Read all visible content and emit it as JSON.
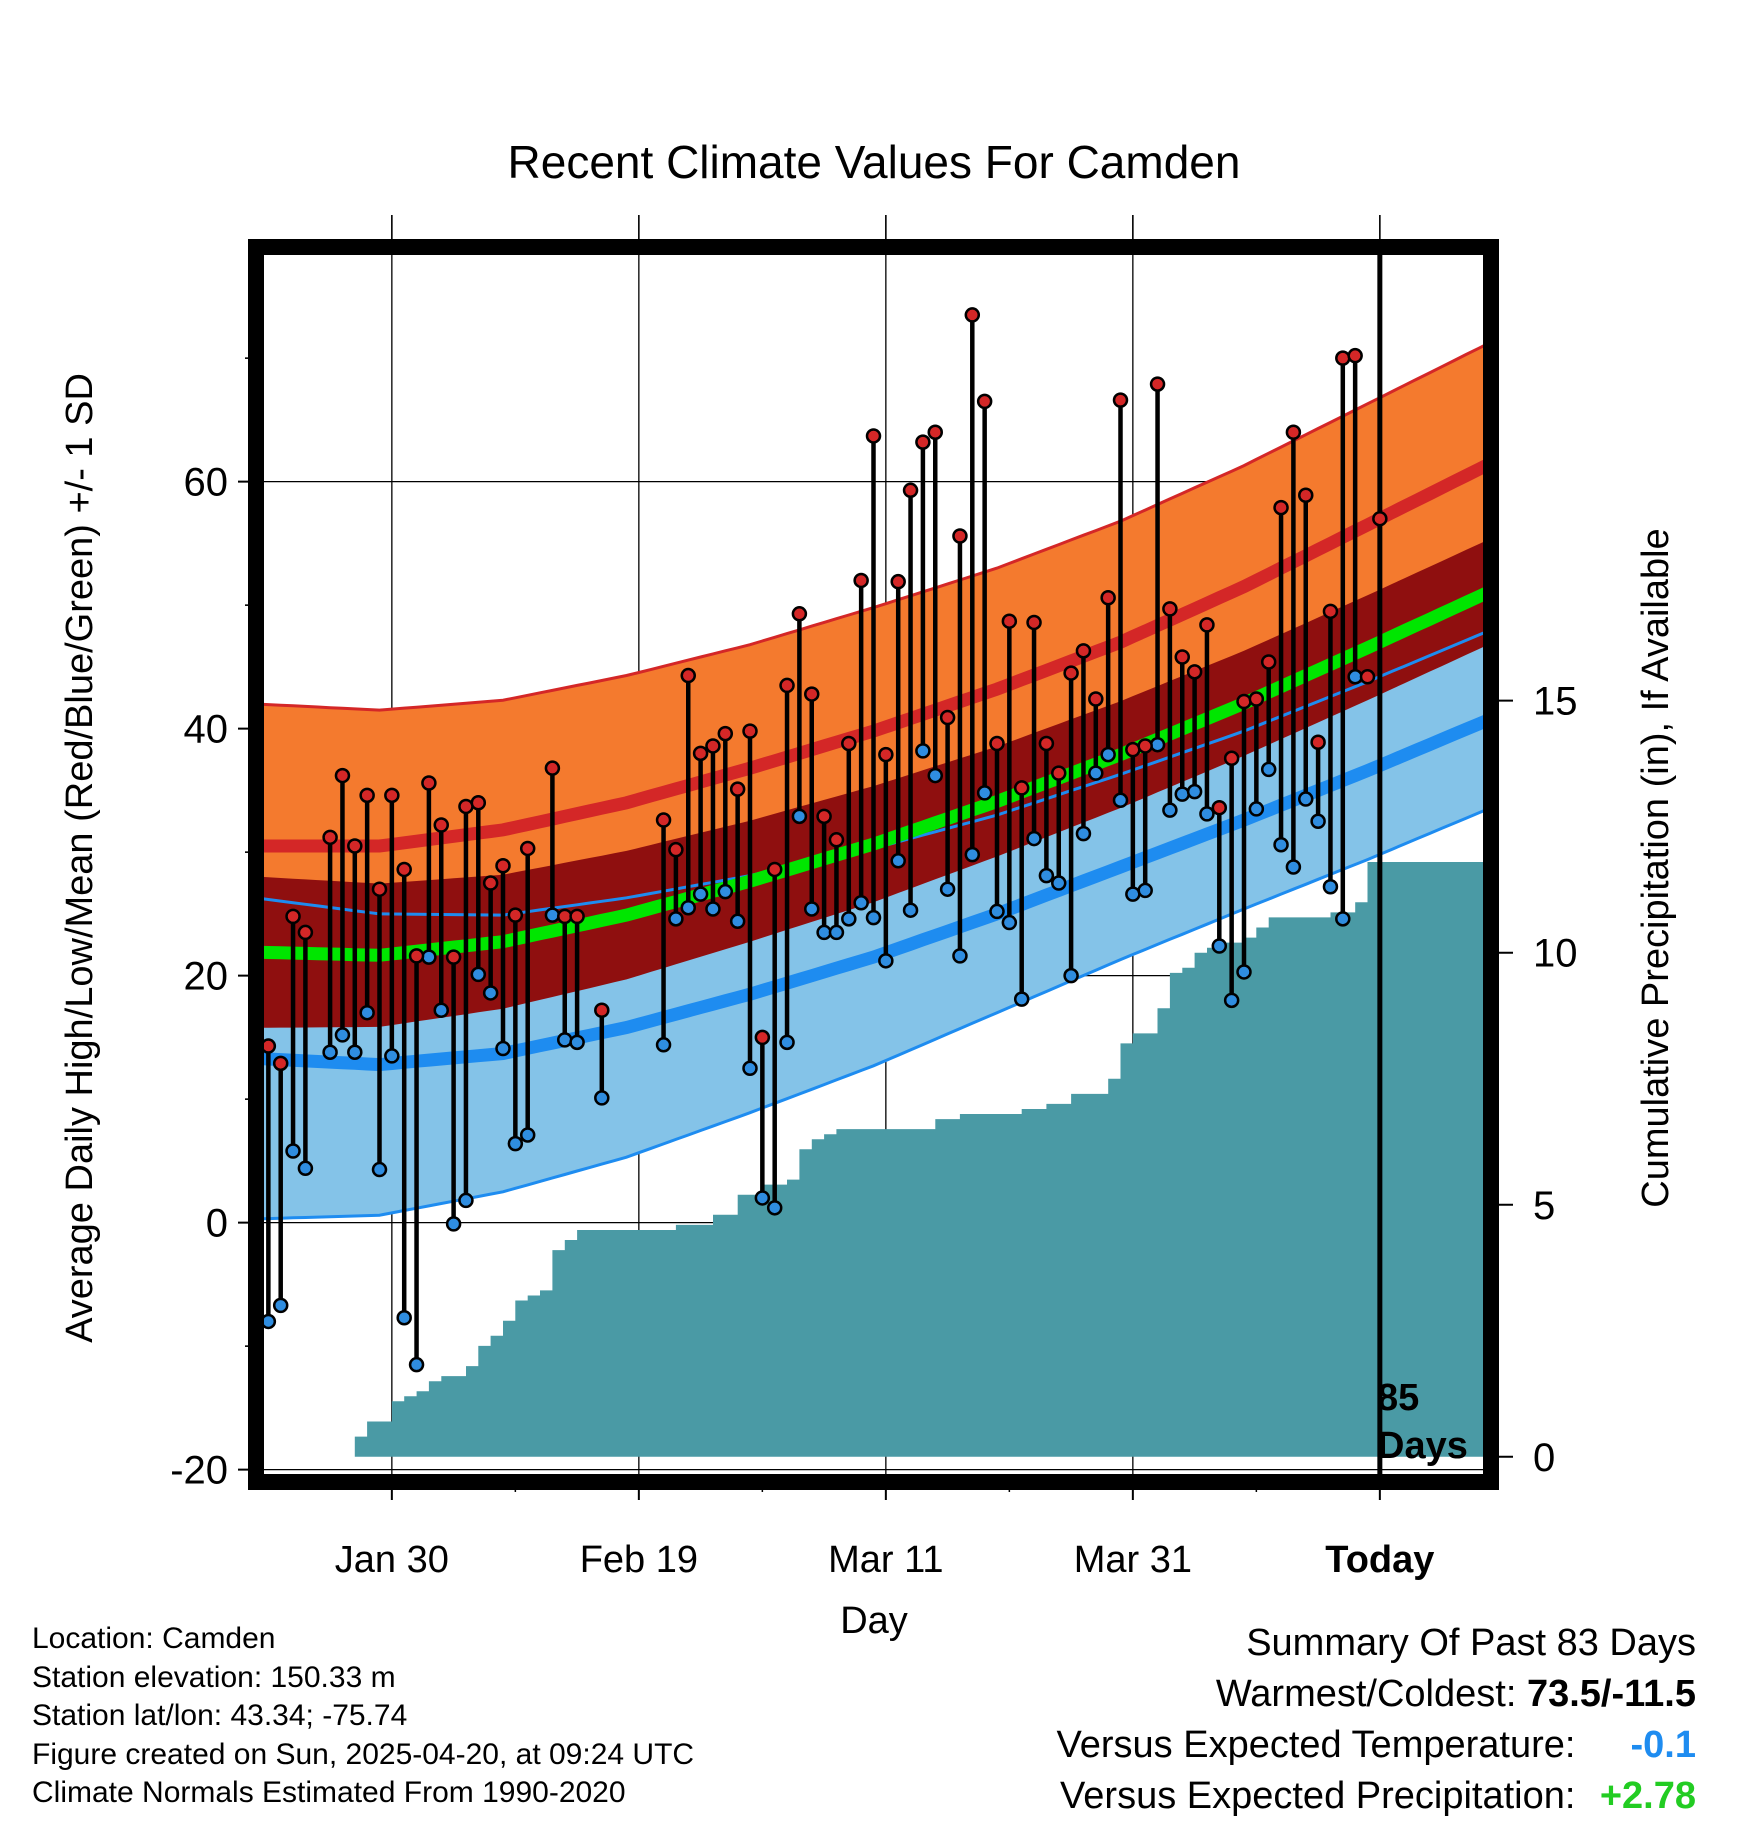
{
  "chart_data": {
    "type": "line",
    "title": "Recent Climate Values For Camden",
    "xlabel": "Day",
    "ylabel": "Average Daily High/Low/Mean (Red/Blue/Green) +/- 1 SD",
    "y2label": "Cumulative Precipitation (in), If Available",
    "x_range": [
      0,
      100
    ],
    "ylim": [
      -21,
      79
    ],
    "y2lim": [
      -0.5,
      24
    ],
    "x_ticks": [
      {
        "x": 11,
        "label": "Jan 30"
      },
      {
        "x": 31,
        "label": "Feb 19"
      },
      {
        "x": 51,
        "label": "Mar 11"
      },
      {
        "x": 71,
        "label": "Mar 31"
      },
      {
        "x": 91,
        "label": "Today"
      }
    ],
    "y_ticks": [
      "-20",
      "0",
      "20",
      "40",
      "60"
    ],
    "y2_ticks": [
      "0",
      "5",
      "10",
      "15"
    ],
    "today_x": 91,
    "today_label_number": "85",
    "today_label_text": "Days",
    "grid": true,
    "colors": {
      "high_band": "#f47a2e",
      "high_line": "#d42727",
      "mean_band": "#8f0f0f",
      "mean_line": "#00e600",
      "low_band": "#84c3e8",
      "low_line": "#1e8cf0",
      "precip": "#4a9aa5",
      "high_marker": "#d42727",
      "low_marker": "#2f8de0"
    },
    "normals": {
      "x": [
        0,
        10,
        20,
        30,
        40,
        50,
        60,
        70,
        80,
        90,
        100
      ],
      "high_mean": [
        30.5,
        30.5,
        31.8,
        34.0,
        36.8,
        39.8,
        43.2,
        47.0,
        51.5,
        56.5,
        61.5
      ],
      "high_sd": [
        11.5,
        11.0,
        10.5,
        10.3,
        10.0,
        10.0,
        9.8,
        9.8,
        9.8,
        9.8,
        9.8
      ],
      "low_mean": [
        13.3,
        12.8,
        13.7,
        15.8,
        18.5,
        21.5,
        25.0,
        28.8,
        32.6,
        36.6,
        40.8
      ],
      "low_sd": [
        13.0,
        12.2,
        11.2,
        10.5,
        9.6,
        8.8,
        8.0,
        7.5,
        7.2,
        7.2,
        7.2
      ]
    },
    "series": [
      {
        "name": "High",
        "x": [
          0,
          1,
          2,
          3,
          4,
          6,
          7,
          8,
          9,
          10,
          11,
          12,
          13,
          14,
          15,
          16,
          17,
          18,
          19,
          20,
          21,
          22,
          24,
          25,
          26,
          28,
          33,
          34,
          35,
          36,
          37,
          38,
          39,
          40,
          41,
          42,
          43,
          44,
          45,
          46,
          47,
          48,
          49,
          50,
          51,
          52,
          53,
          54,
          55,
          56,
          57,
          58,
          59,
          60,
          61,
          62,
          63,
          64,
          65,
          66,
          67,
          68,
          69,
          70,
          71,
          72,
          73,
          74,
          75,
          76,
          77,
          78,
          79,
          80,
          81,
          82,
          83,
          84,
          85,
          86,
          87,
          88,
          89,
          90,
          91
        ],
        "values": [
          16.0,
          14.3,
          12.9,
          24.8,
          23.5,
          31.2,
          36.2,
          30.5,
          34.6,
          27.0,
          34.6,
          28.6,
          21.6,
          35.6,
          32.2,
          21.5,
          33.7,
          34.0,
          27.5,
          28.9,
          24.9,
          30.3,
          36.8,
          24.8,
          24.8,
          17.2,
          32.6,
          30.2,
          44.3,
          38.0,
          38.6,
          39.6,
          35.1,
          39.8,
          15.0,
          28.6,
          43.5,
          49.3,
          42.8,
          32.9,
          31.0,
          38.8,
          52.0,
          63.7,
          37.9,
          51.9,
          59.3,
          63.2,
          64.0,
          40.9,
          55.6,
          73.5,
          66.5,
          38.8,
          48.7,
          35.2,
          48.6,
          38.8,
          36.4,
          44.5,
          46.3,
          42.4,
          50.6,
          66.6,
          38.3,
          38.6,
          67.9,
          49.7,
          45.8,
          44.6,
          48.4,
          33.6,
          37.6,
          42.2,
          42.4,
          45.4,
          57.9,
          64.0,
          58.9,
          38.9,
          49.5,
          70.0,
          70.2,
          44.2,
          57.0
        ]
      },
      {
        "name": "Low",
        "x": [
          0,
          1,
          2,
          3,
          4,
          6,
          7,
          8,
          9,
          10,
          11,
          12,
          13,
          14,
          15,
          16,
          17,
          18,
          19,
          20,
          21,
          22,
          24,
          25,
          26,
          28,
          33,
          34,
          35,
          36,
          37,
          38,
          39,
          40,
          41,
          42,
          43,
          44,
          45,
          46,
          47,
          48,
          49,
          50,
          51,
          52,
          53,
          54,
          55,
          56,
          57,
          58,
          59,
          60,
          61,
          62,
          63,
          64,
          65,
          66,
          67,
          68,
          69,
          70,
          71,
          72,
          73,
          74,
          75,
          76,
          77,
          78,
          79,
          80,
          81,
          82,
          83,
          84,
          85,
          86,
          87,
          88,
          89,
          90,
          91
        ],
        "values": [
          0.2,
          -8.0,
          -6.7,
          5.8,
          4.4,
          13.8,
          15.2,
          13.8,
          17.0,
          4.3,
          13.5,
          -7.7,
          -11.5,
          21.5,
          17.2,
          -0.1,
          1.8,
          20.1,
          18.6,
          14.1,
          6.4,
          7.1,
          24.9,
          14.8,
          14.6,
          10.1,
          14.4,
          24.6,
          25.5,
          26.6,
          25.4,
          26.8,
          24.4,
          12.5,
          2.0,
          1.2,
          14.6,
          32.9,
          25.4,
          23.5,
          23.5,
          24.6,
          25.9,
          24.7,
          21.2,
          29.3,
          25.3,
          38.2,
          36.2,
          27.0,
          21.6,
          29.8,
          34.8,
          25.2,
          24.3,
          18.1,
          31.1,
          28.1,
          27.5,
          20.0,
          31.5,
          36.4,
          37.9,
          34.2,
          26.6,
          26.9,
          38.7,
          33.4,
          34.7,
          34.9,
          33.1,
          22.4,
          18.0,
          20.3,
          33.5,
          36.7,
          30.6,
          28.8,
          34.3,
          32.5,
          27.2,
          24.6,
          44.2,
          null,
          null
        ]
      }
    ],
    "precipitation": {
      "x": [
        0,
        7,
        8,
        9,
        10,
        11,
        12,
        13,
        14,
        15,
        16,
        17,
        18,
        19,
        20,
        21,
        22,
        23,
        24,
        25,
        26,
        27,
        28,
        29,
        30,
        31,
        32,
        33,
        34,
        35,
        36,
        37,
        38,
        39,
        40,
        41,
        42,
        43,
        44,
        45,
        46,
        47,
        48,
        49,
        50,
        51,
        52,
        53,
        54,
        55,
        56,
        57,
        58,
        59,
        60,
        61,
        62,
        63,
        64,
        65,
        66,
        67,
        68,
        69,
        70,
        71,
        72,
        73,
        74,
        75,
        76,
        77,
        78,
        79,
        80,
        81,
        82,
        83,
        84,
        85,
        86,
        87,
        88,
        89,
        90,
        91,
        100
      ],
      "values": [
        0,
        0,
        0.4,
        0.7,
        0.7,
        1.1,
        1.2,
        1.3,
        1.5,
        1.6,
        1.6,
        1.8,
        2.2,
        2.4,
        2.7,
        3.1,
        3.2,
        3.3,
        4.1,
        4.3,
        4.5,
        4.5,
        4.5,
        4.5,
        4.5,
        4.5,
        4.5,
        4.5,
        4.6,
        4.6,
        4.6,
        4.8,
        4.8,
        5.2,
        5.2,
        5.4,
        5.4,
        5.5,
        6.1,
        6.3,
        6.4,
        6.5,
        6.5,
        6.5,
        6.5,
        6.5,
        6.5,
        6.5,
        6.5,
        6.7,
        6.7,
        6.8,
        6.8,
        6.8,
        6.8,
        6.8,
        6.9,
        6.9,
        7.0,
        7.0,
        7.2,
        7.2,
        7.2,
        7.5,
        8.2,
        8.4,
        8.4,
        8.9,
        9.6,
        9.7,
        10.0,
        10.1,
        10.2,
        10.2,
        10.3,
        10.5,
        10.7,
        10.7,
        10.7,
        10.7,
        10.7,
        10.8,
        10.8,
        11.0,
        11.8,
        11.8,
        11.8
      ]
    }
  },
  "info": {
    "location": "Location: Camden",
    "elevation": "Station elevation: 150.33 m",
    "latlon": "Station lat/lon: 43.34; -75.74",
    "created": "Figure created on Sun, 2025-04-20, at 09:24 UTC",
    "normals": "Climate Normals Estimated From 1990-2020"
  },
  "summary": {
    "title": "Summary Of Past 83 Days",
    "warmest_coldest_label": "Warmest/Coldest:",
    "warmest_coldest_value": "73.5/-11.5",
    "temp_label": "Versus Expected Temperature:",
    "temp_value": "-0.1",
    "precip_label": "Versus Expected Precipitation:",
    "precip_value": "+2.78",
    "temp_color": "#1e8cf0",
    "precip_color": "#22cc22"
  }
}
